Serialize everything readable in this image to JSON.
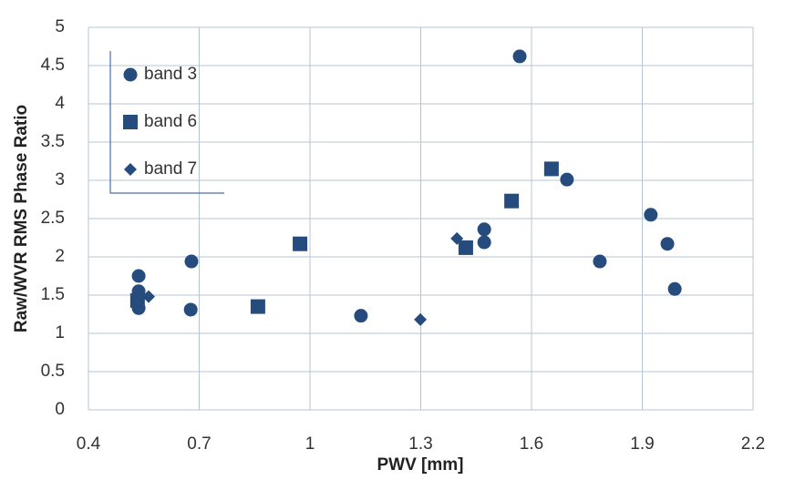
{
  "chart_data": {
    "type": "scatter",
    "x_label": "PWV [mm]",
    "y_label": "Raw/WVR RMS Phase Ratio",
    "xlim": [
      0.4,
      2.2
    ],
    "xticks": [
      0.4,
      0.7,
      1,
      1.3,
      1.6,
      1.9,
      2.2
    ],
    "ylim": [
      0,
      5
    ],
    "yticks": [
      0,
      0.5,
      1,
      1.5,
      2,
      2.5,
      3,
      3.5,
      4,
      4.5,
      5
    ],
    "grid": true,
    "legend": "upper-left",
    "series": [
      {
        "name": "band 3",
        "color": "#264b7d",
        "marker": "circle",
        "x": [
          0.536,
          0.536,
          0.536,
          0.536,
          0.679,
          0.677,
          1.138,
          1.472,
          1.472,
          1.568,
          1.696,
          1.785,
          1.923,
          1.968,
          1.988
        ],
        "values": [
          1.75,
          1.55,
          1.49,
          1.33,
          1.94,
          1.31,
          1.23,
          2.36,
          2.19,
          4.62,
          3.01,
          1.94,
          2.55,
          2.17,
          1.58
        ]
      },
      {
        "name": "band 6",
        "color": "#264b7d",
        "marker": "square",
        "x": [
          0.533,
          0.859,
          0.973,
          1.422,
          1.546,
          1.654
        ],
        "values": [
          1.43,
          1.35,
          2.17,
          2.12,
          2.73,
          3.15
        ]
      },
      {
        "name": "band 7",
        "color": "#264b7d",
        "marker": "diamond",
        "x": [
          0.563,
          1.299,
          1.398
        ],
        "values": [
          1.48,
          1.18,
          2.24
        ]
      }
    ]
  }
}
